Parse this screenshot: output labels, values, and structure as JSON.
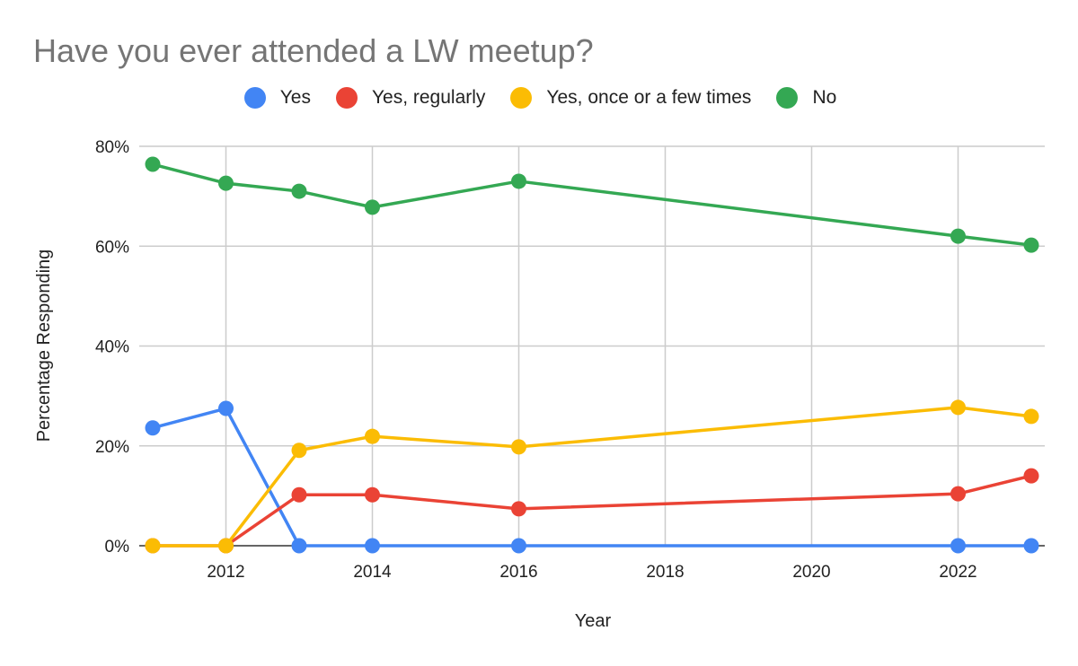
{
  "chart_data": {
    "type": "line",
    "title": "Have you ever attended a LW meetup?",
    "xlabel": "Year",
    "ylabel": "Percentage Responding",
    "xlim": [
      2011,
      2023
    ],
    "ylim": [
      0,
      80
    ],
    "x_ticks": [
      2012,
      2014,
      2016,
      2018,
      2020,
      2022
    ],
    "y_ticks": [
      0,
      20,
      40,
      60,
      80
    ],
    "y_tick_labels": [
      "0%",
      "20%",
      "40%",
      "60%",
      "80%"
    ],
    "x_tick_labels": [
      "2012",
      "2014",
      "2016",
      "2018",
      "2020",
      "2022"
    ],
    "grid": true,
    "legend_position": "top",
    "x": [
      2011,
      2012,
      2013,
      2014,
      2016,
      2022,
      2023
    ],
    "series": [
      {
        "name": "Yes",
        "color": "#4285f4",
        "values": [
          23.6,
          27.5,
          0,
          0,
          0,
          0,
          0
        ]
      },
      {
        "name": "Yes, regularly",
        "color": "#ea4335",
        "values": [
          0,
          0,
          10.2,
          10.2,
          7.4,
          10.4,
          14.0
        ]
      },
      {
        "name": "Yes, once or a few times",
        "color": "#fbbc04",
        "values": [
          0,
          0,
          19.1,
          21.9,
          19.8,
          27.7,
          25.9
        ]
      },
      {
        "name": "No",
        "color": "#34a853",
        "values": [
          76.4,
          72.6,
          71.0,
          67.8,
          73.0,
          62.0,
          60.2
        ]
      }
    ]
  }
}
